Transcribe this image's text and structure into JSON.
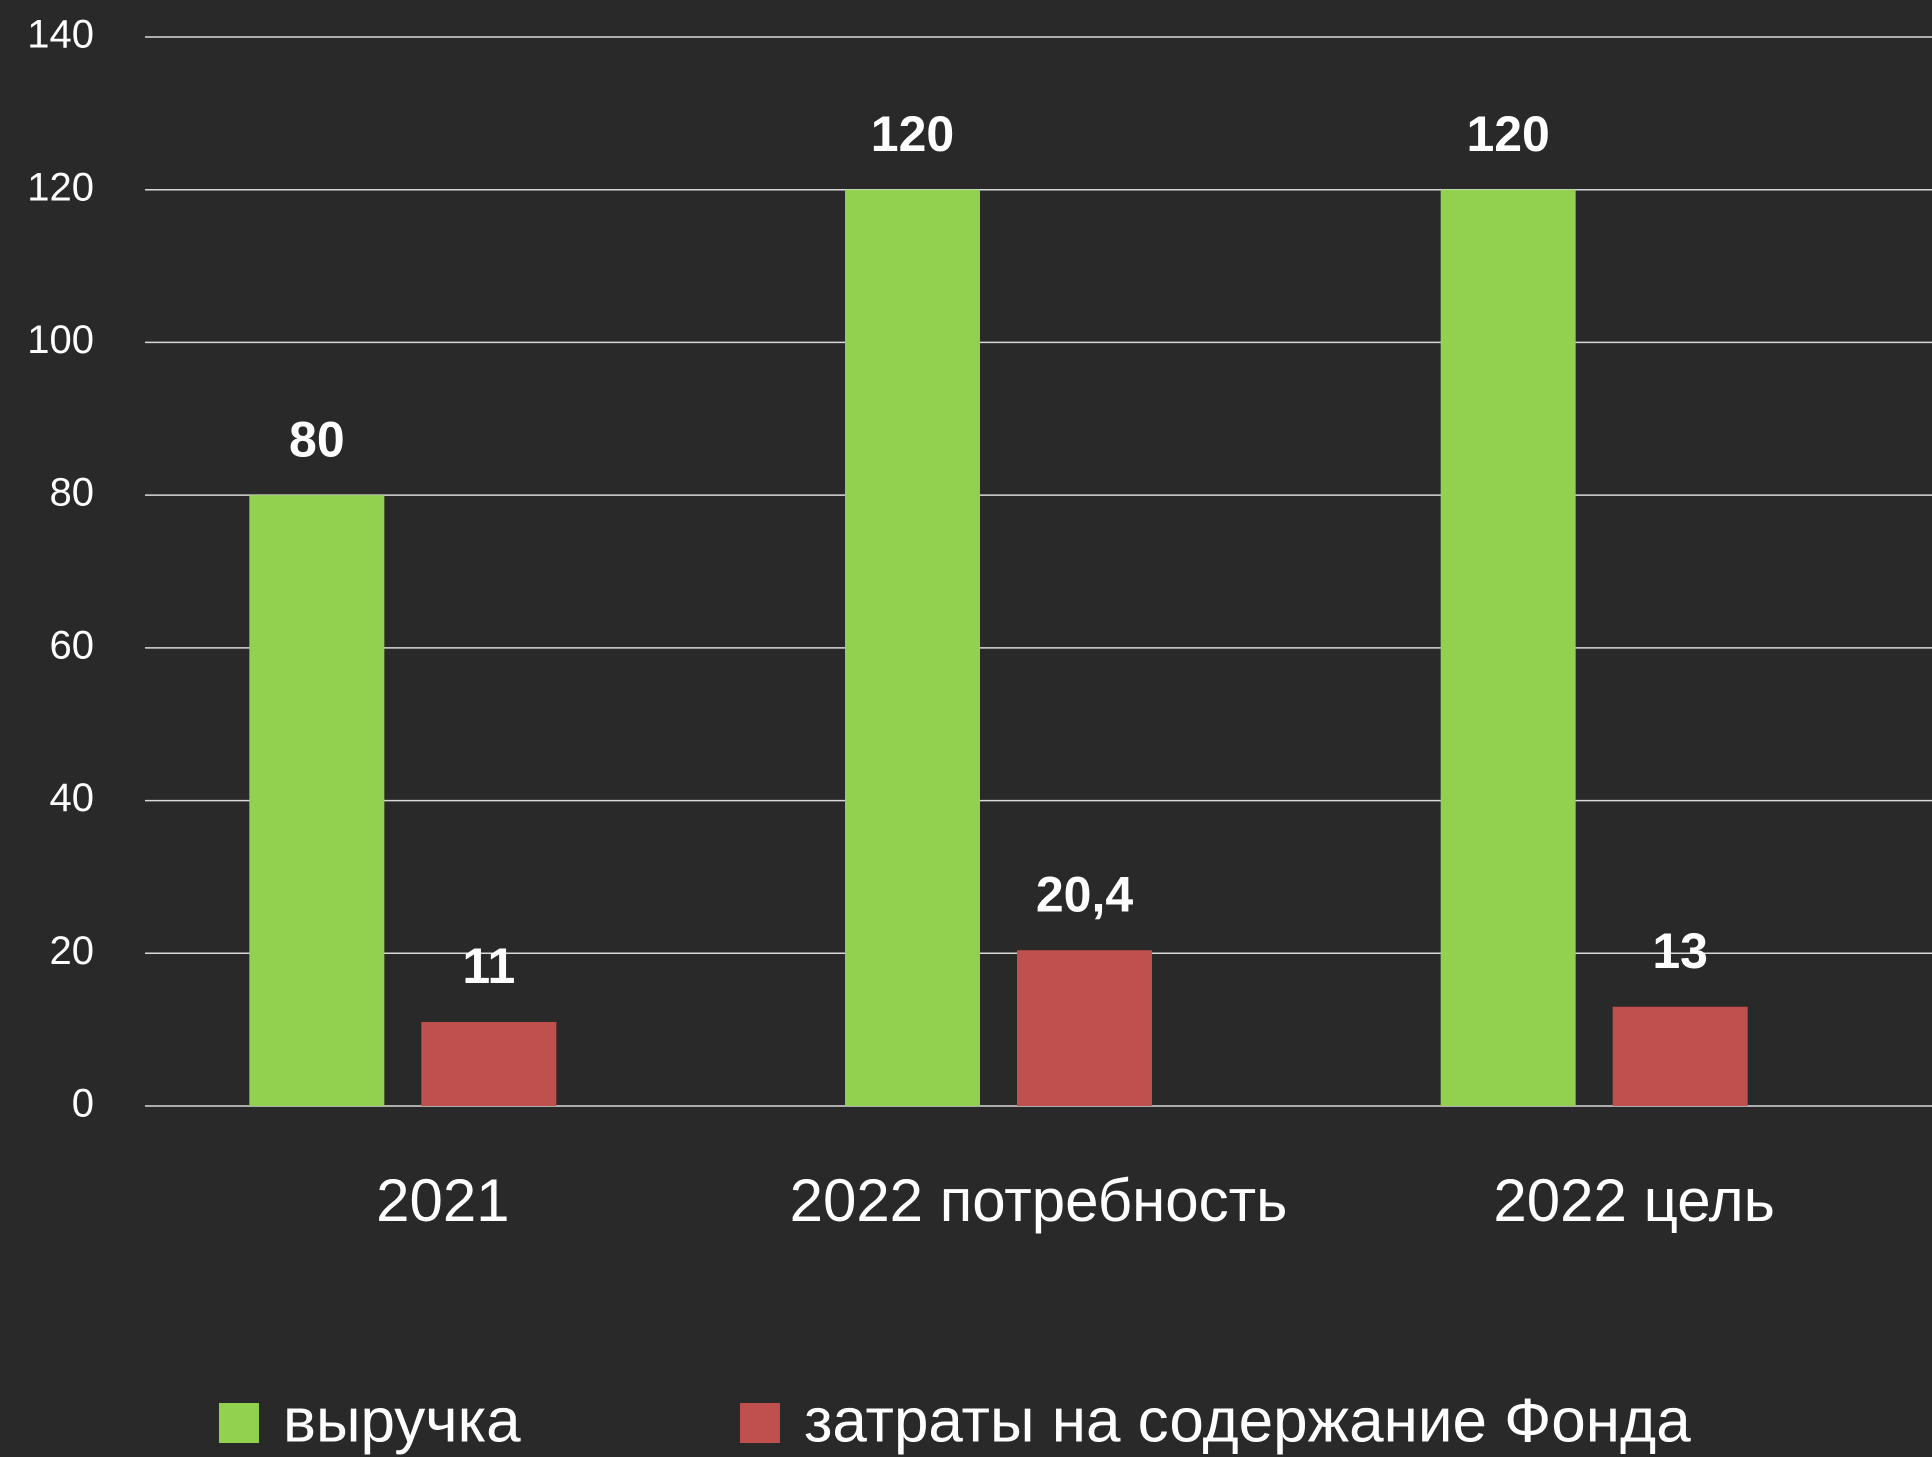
{
  "chart_data": {
    "type": "bar",
    "categories": [
      "2021",
      "2022 потребность",
      "2022 цель"
    ],
    "series": [
      {
        "name": "выручка",
        "color": "#92d050",
        "values": [
          80,
          120,
          120
        ]
      },
      {
        "name": "затраты на содержание Фонда",
        "color": "#c0504d",
        "values": [
          11,
          20.4,
          13
        ],
        "value_labels": [
          "11",
          "20,4",
          "13"
        ]
      }
    ],
    "ylim": [
      0,
      140
    ],
    "yticks": [
      0,
      20,
      40,
      60,
      80,
      100,
      120,
      140
    ],
    "grid": true,
    "legend": "bottom"
  }
}
